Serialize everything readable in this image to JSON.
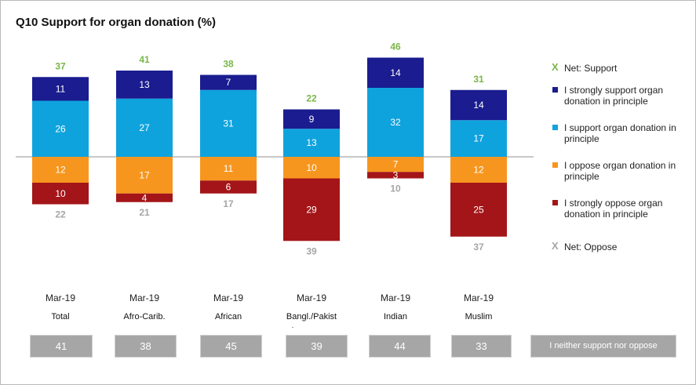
{
  "title": "Q10 Support for organ donation (%)",
  "colors": {
    "strongly_support": "#1a1c8f",
    "support": "#0fa3de",
    "oppose": "#f7961e",
    "strongly_oppose": "#a31518",
    "net_support": "#7ab648",
    "net_oppose": "#a6a6a6",
    "footer_box": "#a6a6a6"
  },
  "legend": [
    {
      "key": "net_support",
      "label": "Net: Support",
      "marker": "X"
    },
    {
      "key": "strongly_support",
      "label": "I strongly support organ donation in principle",
      "marker": "square"
    },
    {
      "key": "support",
      "label": "I support organ donation in principle",
      "marker": "square"
    },
    {
      "key": "oppose",
      "label": "I oppose organ donation in principle",
      "marker": "square"
    },
    {
      "key": "strongly_oppose",
      "label": "I strongly oppose organ donation in principle",
      "marker": "square"
    },
    {
      "key": "net_oppose",
      "label": "Net: Oppose",
      "marker": "X"
    }
  ],
  "chart_data": {
    "type": "bar",
    "stacked": "diverging",
    "title": "Q10 Support for organ donation (%)",
    "categories": [
      "Total",
      "Afro-Carib.",
      "African",
      "Bangl./Pakist",
      "Indian",
      "Muslim"
    ],
    "period": "Mar-19",
    "category_suffixes": [
      "",
      "",
      "",
      ".",
      "",
      ""
    ],
    "series": [
      {
        "name": "I strongly support organ donation in principle",
        "key": "strongly_support",
        "values": [
          11,
          13,
          7,
          9,
          14,
          14
        ],
        "direction": "up"
      },
      {
        "name": "I support organ donation in principle",
        "key": "support",
        "values": [
          26,
          27,
          31,
          13,
          32,
          17
        ],
        "direction": "up"
      },
      {
        "name": "I oppose organ donation in principle",
        "key": "oppose",
        "values": [
          12,
          17,
          11,
          10,
          7,
          12
        ],
        "direction": "down"
      },
      {
        "name": "I strongly oppose organ donation in principle",
        "key": "strongly_oppose",
        "values": [
          10,
          4,
          6,
          29,
          3,
          25
        ],
        "direction": "down"
      }
    ],
    "net_support": [
      37,
      41,
      38,
      22,
      46,
      31
    ],
    "net_oppose": [
      22,
      21,
      17,
      39,
      10,
      37
    ],
    "neither_support_nor_oppose": {
      "label": "I neither support nor oppose",
      "values": [
        41,
        38,
        45,
        39,
        44,
        33
      ]
    },
    "legend_position": "right",
    "grid": false
  }
}
